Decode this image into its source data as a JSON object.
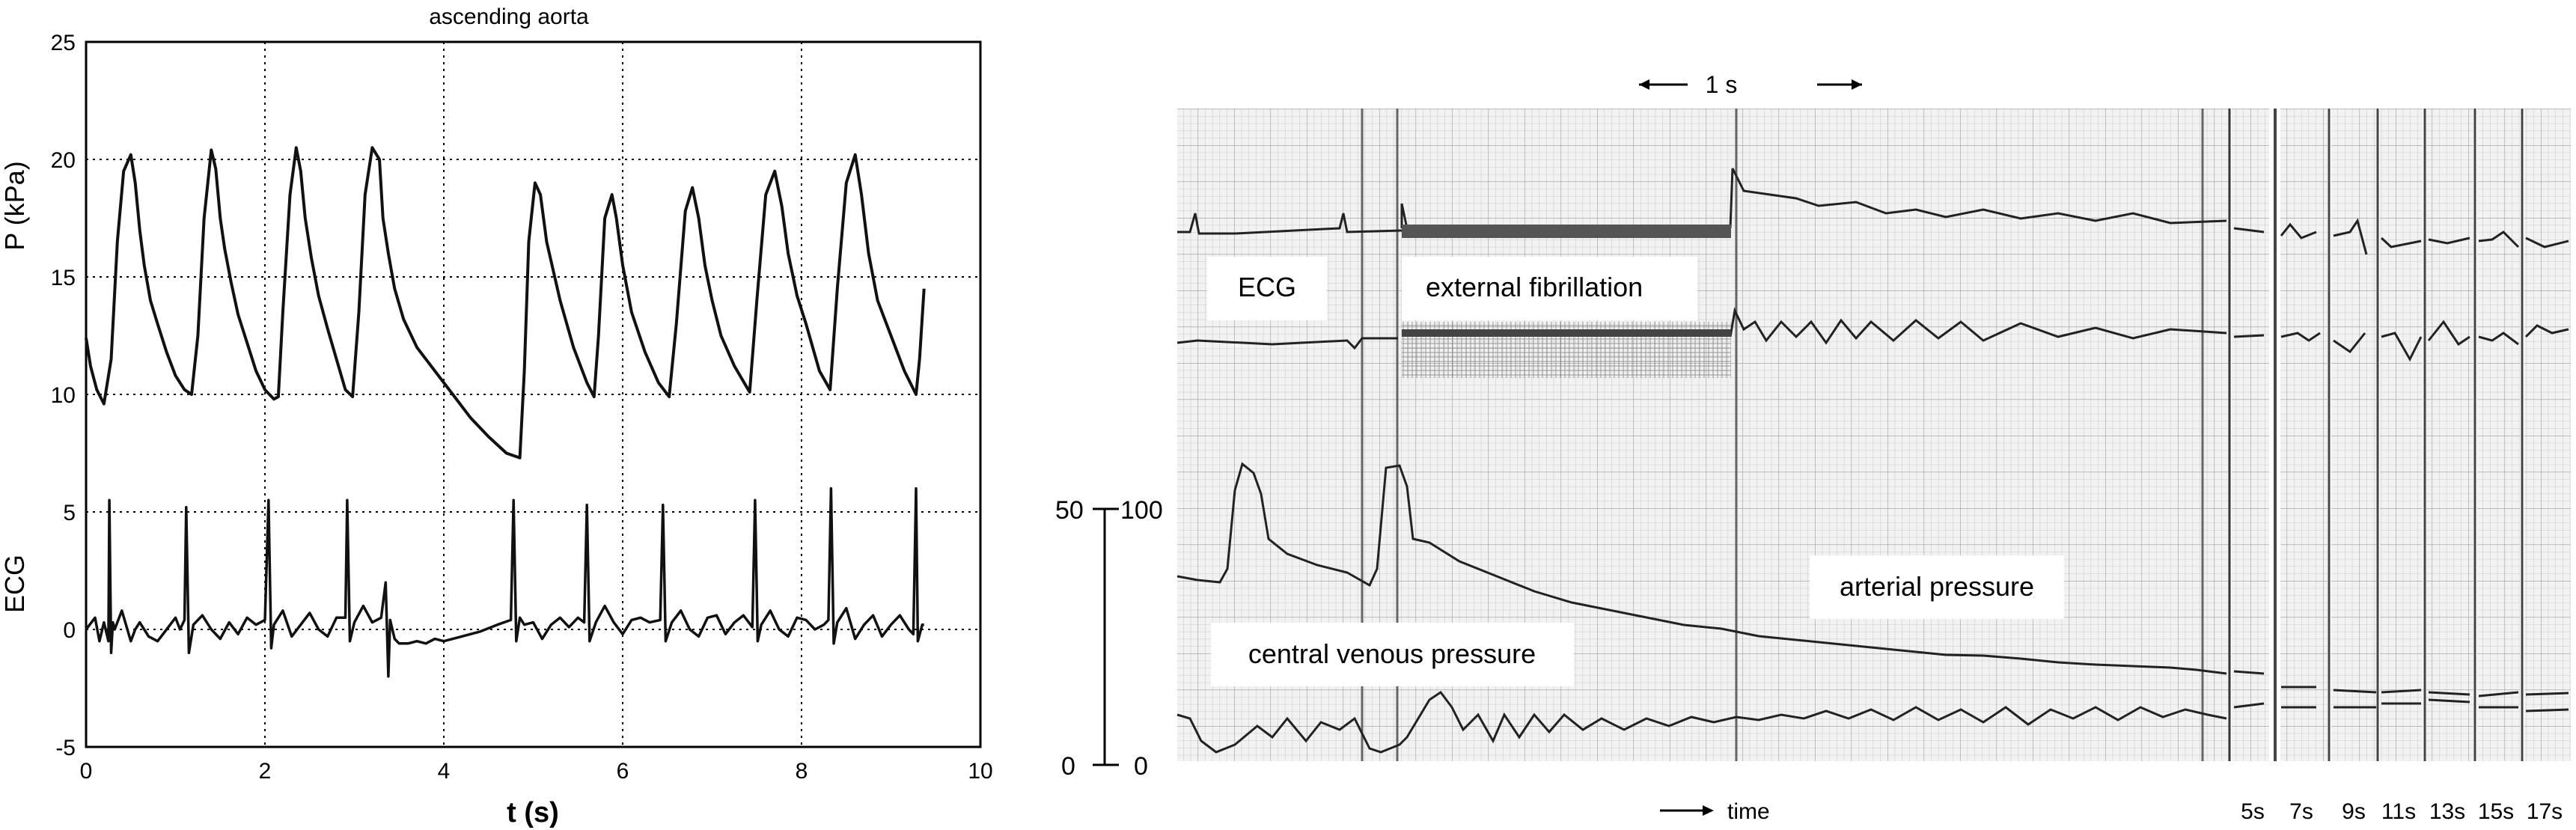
{
  "chart_data": [
    {
      "type": "line",
      "title": "ascending aorta",
      "xlabel": "t (s)",
      "ylabel": "P (kPa)",
      "ylabel_lower": "ECG",
      "xlim": [
        0,
        10
      ],
      "ylim": [
        -5,
        25
      ],
      "xticks": [
        "0",
        "2",
        "4",
        "6",
        "8",
        "10"
      ],
      "yticks": [
        "-5",
        "0",
        "5",
        "10",
        "15",
        "20",
        "25"
      ],
      "grid": true,
      "series": [
        {
          "x": [
            0,
            0.05,
            0.12,
            0.2,
            0.28,
            0.35,
            0.42,
            0.5,
            0.55,
            0.6,
            0.65,
            0.72,
            0.8,
            0.9,
            1.0,
            1.1,
            1.18,
            1.25,
            1.32,
            1.4,
            1.45,
            1.5,
            1.55,
            1.62,
            1.7,
            1.8,
            1.9,
            2.0,
            2.1,
            2.15,
            2.2,
            2.28,
            2.35,
            2.4,
            2.45,
            2.52,
            2.6,
            2.7,
            2.8,
            2.9,
            2.98,
            3.05,
            3.12,
            3.2,
            3.28,
            3.32,
            3.38,
            3.45,
            3.55,
            3.7,
            3.9,
            4.1,
            4.3,
            4.5,
            4.7,
            4.85,
            4.9,
            4.95,
            5.02,
            5.08,
            5.15,
            5.3,
            5.45,
            5.6,
            5.68,
            5.73,
            5.8,
            5.88,
            5.93,
            6.0,
            6.1,
            6.25,
            6.4,
            6.52,
            6.6,
            6.7,
            6.78,
            6.85,
            6.92,
            7.0,
            7.1,
            7.25,
            7.42,
            7.5,
            7.6,
            7.7,
            7.78,
            7.85,
            7.95,
            8.05,
            8.2,
            8.32,
            8.4,
            8.5,
            8.6,
            8.67,
            8.75,
            8.85,
            9.0,
            9.15,
            9.28,
            9.32,
            9.37
          ],
          "y": [
            12.4,
            11.2,
            10.2,
            9.6,
            11.5,
            16.5,
            19.5,
            20.2,
            19.0,
            17.0,
            15.5,
            14.0,
            13.0,
            11.8,
            10.8,
            10.2,
            10.0,
            12.5,
            17.5,
            20.4,
            19.6,
            17.5,
            16.2,
            14.8,
            13.4,
            12.2,
            11.0,
            10.2,
            9.8,
            9.9,
            13.5,
            18.5,
            20.5,
            19.5,
            17.5,
            15.8,
            14.2,
            12.8,
            11.5,
            10.2,
            9.9,
            13.5,
            18.5,
            20.5,
            20.0,
            17.5,
            16.0,
            14.5,
            13.2,
            12.0,
            11.0,
            10.0,
            9.0,
            8.2,
            7.5,
            7.3,
            11.0,
            16.5,
            19.0,
            18.5,
            16.5,
            14.0,
            12.0,
            10.5,
            9.9,
            12.5,
            17.5,
            18.5,
            17.5,
            15.5,
            13.5,
            11.8,
            10.5,
            9.9,
            13.0,
            17.8,
            18.8,
            17.5,
            15.5,
            14.0,
            12.5,
            11.2,
            10.1,
            14.0,
            18.5,
            19.5,
            18.0,
            16.0,
            14.2,
            13.0,
            11.0,
            10.2,
            14.5,
            19.0,
            20.2,
            18.5,
            16.0,
            14.0,
            12.5,
            11.0,
            10.0,
            11.5,
            14.5
          ]
        },
        {
          "x": [
            0,
            0.1,
            0.15,
            0.2,
            0.25,
            0.26,
            0.28,
            0.3,
            0.32,
            0.4,
            0.5,
            0.55,
            0.6,
            0.7,
            0.8,
            0.9,
            1.0,
            1.05,
            1.1,
            1.12,
            1.15,
            1.2,
            1.3,
            1.4,
            1.5,
            1.6,
            1.7,
            1.8,
            1.9,
            2.0,
            2.04,
            2.07,
            2.1,
            2.2,
            2.3,
            2.4,
            2.5,
            2.6,
            2.7,
            2.8,
            2.9,
            2.92,
            2.95,
            3.0,
            3.1,
            3.2,
            3.3,
            3.35,
            3.38,
            3.4,
            3.45,
            3.5,
            3.6,
            3.7,
            3.8,
            3.9,
            4.0,
            4.2,
            4.4,
            4.6,
            4.75,
            4.78,
            4.81,
            4.85,
            4.9,
            5.0,
            5.1,
            5.2,
            5.3,
            5.4,
            5.5,
            5.57,
            5.6,
            5.63,
            5.7,
            5.8,
            5.9,
            6.0,
            6.1,
            6.2,
            6.3,
            6.42,
            6.45,
            6.48,
            6.55,
            6.65,
            6.75,
            6.85,
            6.95,
            7.05,
            7.15,
            7.25,
            7.35,
            7.45,
            7.48,
            7.51,
            7.55,
            7.65,
            7.75,
            7.85,
            7.95,
            8.05,
            8.15,
            8.25,
            8.3,
            8.33,
            8.36,
            8.4,
            8.5,
            8.6,
            8.7,
            8.8,
            8.9,
            9.0,
            9.1,
            9.2,
            9.25,
            9.28,
            9.3,
            9.35,
            9.37
          ],
          "y": [
            0,
            0.5,
            -0.5,
            0.3,
            -0.5,
            5.5,
            -1.0,
            0.3,
            0,
            0.8,
            -0.5,
            0,
            0.3,
            -0.3,
            -0.5,
            0,
            0.5,
            0,
            0.4,
            5.2,
            -1.0,
            0.2,
            0.6,
            0,
            -0.4,
            0.3,
            -0.2,
            0.5,
            0.2,
            0.4,
            5.5,
            -0.8,
            0.2,
            0.8,
            -0.3,
            0.2,
            0.7,
            0,
            -0.3,
            0.5,
            0.5,
            5.5,
            -0.5,
            0.3,
            1.0,
            0.3,
            0.5,
            2.0,
            -2.0,
            0.4,
            -0.4,
            -0.6,
            -0.6,
            -0.5,
            -0.6,
            -0.4,
            -0.5,
            -0.3,
            -0.1,
            0.2,
            0.4,
            5.5,
            -0.5,
            0.5,
            0.2,
            0.3,
            -0.4,
            0.2,
            0.5,
            0.1,
            0.5,
            0.3,
            5.3,
            -0.5,
            0.3,
            1.0,
            0.3,
            -0.2,
            0.4,
            0.5,
            0.3,
            0.4,
            5.3,
            -0.5,
            0.3,
            0.8,
            0,
            -0.3,
            0.5,
            0.6,
            -0.2,
            0.3,
            0.6,
            0.1,
            5.5,
            -0.5,
            0.2,
            0.8,
            0,
            -0.3,
            0.5,
            0.4,
            0,
            0.2,
            0.4,
            6.0,
            -0.6,
            0.3,
            0.9,
            -0.4,
            0.2,
            0.6,
            -0.3,
            0.2,
            0.6,
            0,
            -0.2,
            6.0,
            -0.5,
            0.2,
            0.2
          ]
        }
      ]
    },
    {
      "type": "line",
      "scale_bar_label": "1 s",
      "annotations": [
        "ECG",
        "external fibrillation",
        "arterial pressure",
        "central venous pressure"
      ],
      "left_scale_values": [
        "50",
        "100",
        "0",
        "0"
      ],
      "time_label": "time",
      "segment_labels": [
        "5s",
        "7s",
        "9s",
        "11s",
        "13s",
        "15s",
        "17s"
      ]
    }
  ]
}
